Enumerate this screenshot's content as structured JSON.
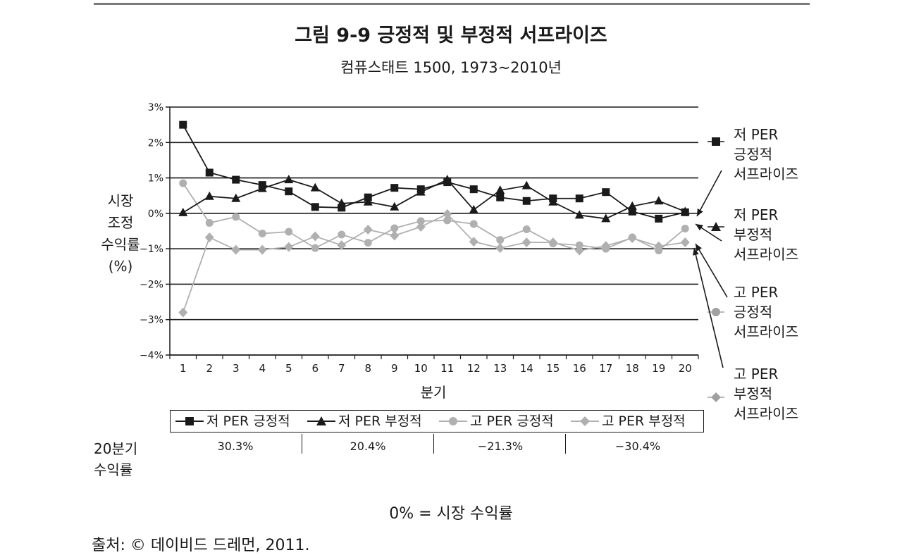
{
  "title": "그림 9-9  긍정적 및 부정적 서프라이즈",
  "subtitle": "컴퓨스태트 1500, 1973~2010년",
  "note": "0% = 시장 수익률",
  "source": "출처: © 데이비드 드레먼, 2011.",
  "returns": {
    "label": "20분기\n수익률",
    "values": [
      "30.3%",
      "20.4%",
      "−21.3%",
      "−30.4%"
    ]
  },
  "colors": {
    "dark": "#1a1a1a",
    "light": "#b0b0b0"
  },
  "chart_data": {
    "type": "line",
    "xlabel": "분기",
    "ylabel": "시장\n조정\n수익률\n(%)",
    "x": [
      1,
      2,
      3,
      4,
      5,
      6,
      7,
      8,
      9,
      10,
      11,
      12,
      13,
      14,
      15,
      16,
      17,
      18,
      19,
      20
    ],
    "ylim": [
      -4,
      3
    ],
    "yticks": [
      3,
      2,
      1,
      0,
      -1,
      -2,
      -3,
      -4
    ],
    "ytick_labels": [
      "3%",
      "2%",
      "1%",
      "0%",
      "−1%",
      "−2%",
      "−3%",
      "−4%"
    ],
    "grid": "horizontal",
    "legend": "bottom",
    "series": [
      {
        "name": "저 PER 긍정적",
        "marker": "square",
        "color": "#1a1a1a",
        "annotation": "저 PER\n긍정적\n서프라이즈",
        "values": [
          2.5,
          1.15,
          0.95,
          0.8,
          0.62,
          0.18,
          0.16,
          0.45,
          0.72,
          0.68,
          0.88,
          0.68,
          0.45,
          0.35,
          0.42,
          0.42,
          0.6,
          0.05,
          -0.15,
          0.03
        ]
      },
      {
        "name": "저 PER 부정적",
        "marker": "triangle",
        "color": "#1a1a1a",
        "annotation": "저 PER\n부정적\n서프라이즈",
        "values": [
          0.02,
          0.48,
          0.42,
          0.7,
          0.95,
          0.72,
          0.28,
          0.32,
          0.18,
          0.6,
          0.95,
          0.1,
          0.65,
          0.78,
          0.32,
          -0.05,
          -0.15,
          0.2,
          0.35,
          0.05
        ]
      },
      {
        "name": "고 PER 긍정적",
        "marker": "circle",
        "color": "#b0b0b0",
        "annotation": "고 PER\n긍정적\n서프라이즈",
        "values": [
          0.85,
          -0.27,
          -0.1,
          -0.57,
          -0.52,
          -0.98,
          -0.6,
          -0.83,
          -0.42,
          -0.22,
          -0.2,
          -0.3,
          -0.75,
          -0.45,
          -0.85,
          -0.9,
          -1.0,
          -0.68,
          -1.05,
          -0.43
        ]
      },
      {
        "name": "고 PER 부정적",
        "marker": "diamond",
        "color": "#b0b0b0",
        "annotation": "고 PER\n부정적\n서프라이즈",
        "values": [
          -2.8,
          -0.68,
          -1.03,
          -1.03,
          -0.95,
          -0.65,
          -0.9,
          -0.46,
          -0.63,
          -0.38,
          -0.02,
          -0.8,
          -0.98,
          -0.82,
          -0.82,
          -1.05,
          -0.92,
          -0.7,
          -0.93,
          -0.82
        ]
      }
    ]
  }
}
